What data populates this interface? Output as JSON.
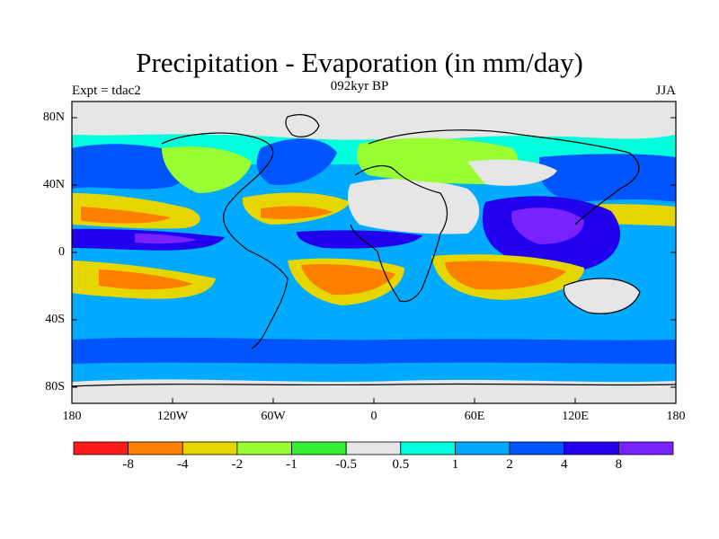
{
  "header": {
    "title": "Precipitation - Evaporation (in mm/day)",
    "subtitle": "092kyr BP",
    "left_label": "Expt = tdac2",
    "right_label": "JJA"
  },
  "axes": {
    "lat_labels": [
      "80N",
      "40N",
      "0",
      "40S",
      "80S"
    ],
    "lon_labels": [
      "180",
      "120W",
      "60W",
      "0",
      "60E",
      "120E",
      "180"
    ]
  },
  "colorbar": {
    "labels": [
      "-8",
      "-4",
      "-2",
      "-1",
      "-0.5",
      "0.5",
      "1",
      "2",
      "4",
      "8"
    ],
    "colors": [
      "#ff1a1a",
      "#ff8000",
      "#e6d600",
      "#99ff33",
      "#33ee33",
      "#e6e6e6",
      "#00ffdd",
      "#00aaff",
      "#0055ff",
      "#2200ee",
      "#7722ff"
    ]
  },
  "map": {
    "colors": {
      "ocean_dry": "#ff8000",
      "subtropic": "#e6d600",
      "trans_green": "#99ff33",
      "green": "#33ee33",
      "neutral": "#e6e6e6",
      "cyan": "#00ffdd",
      "light_blue": "#00aaff",
      "blue": "#0055ff",
      "dark_blue": "#2200ee",
      "purple": "#7722ff"
    }
  }
}
